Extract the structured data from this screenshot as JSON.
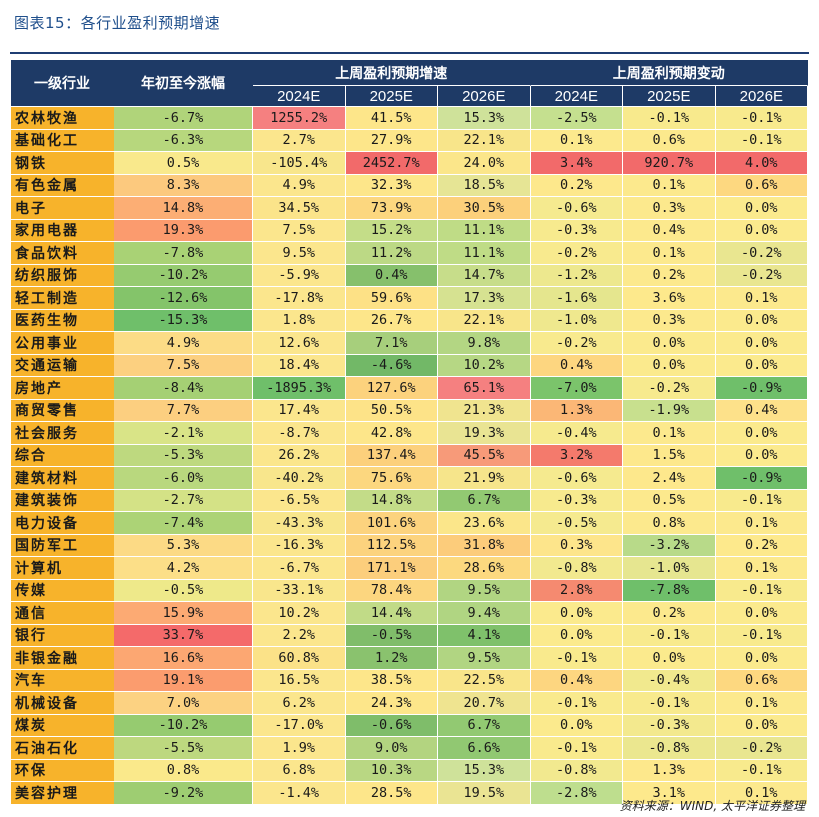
{
  "title": "图表15：各行业盈利预期增速",
  "headers": {
    "industry": "一级行业",
    "ytd": "年初至今涨幅",
    "group_growth": "上周盈利预期增速",
    "group_change": "上周盈利预期变动",
    "years": [
      "2024E",
      "2025E",
      "2026E"
    ]
  },
  "rows": [
    {
      "name": "农林牧渔",
      "cells": [
        {
          "v": "-6.7%",
          "c": "#b0d47a"
        },
        {
          "v": "1255.2%",
          "c": "#f58080"
        },
        {
          "v": "41.5%",
          "c": "#fde68a"
        },
        {
          "v": "15.3%",
          "c": "#cfe29a"
        },
        {
          "v": "-2.5%",
          "c": "#c5e08f"
        },
        {
          "v": "-0.1%",
          "c": "#f8ea8d"
        },
        {
          "v": "-0.1%",
          "c": "#f8ea8d"
        }
      ]
    },
    {
      "name": "基础化工",
      "cells": [
        {
          "v": "-6.3%",
          "c": "#b7d77d"
        },
        {
          "v": "2.7%",
          "c": "#fbe68d"
        },
        {
          "v": "27.9%",
          "c": "#fde68a"
        },
        {
          "v": "22.1%",
          "c": "#f8e58a"
        },
        {
          "v": "0.1%",
          "c": "#fce98d"
        },
        {
          "v": "0.6%",
          "c": "#fce98d"
        },
        {
          "v": "-0.1%",
          "c": "#f8ea8d"
        }
      ]
    },
    {
      "name": "钢铁",
      "cells": [
        {
          "v": "0.5%",
          "c": "#f9e98c"
        },
        {
          "v": "-105.4%",
          "c": "#f8e68c"
        },
        {
          "v": "2452.7%",
          "c": "#f26a6a"
        },
        {
          "v": "24.0%",
          "c": "#fbe68a"
        },
        {
          "v": "3.4%",
          "c": "#f26a6a"
        },
        {
          "v": "920.7%",
          "c": "#f26a6a"
        },
        {
          "v": "4.0%",
          "c": "#f26a6a"
        }
      ]
    },
    {
      "name": "有色金属",
      "cells": [
        {
          "v": "8.3%",
          "c": "#fcc97e"
        },
        {
          "v": "4.9%",
          "c": "#fbe68d"
        },
        {
          "v": "32.3%",
          "c": "#fde68a"
        },
        {
          "v": "18.5%",
          "c": "#e6e595"
        },
        {
          "v": "0.2%",
          "c": "#fde88c"
        },
        {
          "v": "0.1%",
          "c": "#fce98d"
        },
        {
          "v": "0.6%",
          "c": "#fdd880"
        }
      ]
    },
    {
      "name": "电子",
      "cells": [
        {
          "v": "14.8%",
          "c": "#fcae74"
        },
        {
          "v": "34.5%",
          "c": "#fbe48a"
        },
        {
          "v": "73.9%",
          "c": "#fcd77f"
        },
        {
          "v": "30.5%",
          "c": "#fcd07b"
        },
        {
          "v": "-0.6%",
          "c": "#f5ea8f"
        },
        {
          "v": "0.3%",
          "c": "#fce98d"
        },
        {
          "v": "0.0%",
          "c": "#fbea8d"
        }
      ]
    },
    {
      "name": "家用电器",
      "cells": [
        {
          "v": "19.3%",
          "c": "#fb9b6e"
        },
        {
          "v": "7.5%",
          "c": "#fbe68d"
        },
        {
          "v": "15.2%",
          "c": "#c4dd88"
        },
        {
          "v": "11.1%",
          "c": "#bfdc86"
        },
        {
          "v": "-0.3%",
          "c": "#f7ea8e"
        },
        {
          "v": "0.4%",
          "c": "#fce98d"
        },
        {
          "v": "0.0%",
          "c": "#fbea8d"
        }
      ]
    },
    {
      "name": "食品饮料",
      "cells": [
        {
          "v": "-7.8%",
          "c": "#a9d275"
        },
        {
          "v": "9.5%",
          "c": "#fbe68d"
        },
        {
          "v": "11.2%",
          "c": "#bcd985"
        },
        {
          "v": "11.1%",
          "c": "#bfdc86"
        },
        {
          "v": "-0.2%",
          "c": "#f8ea8e"
        },
        {
          "v": "0.1%",
          "c": "#fce98d"
        },
        {
          "v": "-0.2%",
          "c": "#e9e690"
        }
      ]
    },
    {
      "name": "纺织服饰",
      "cells": [
        {
          "v": "-10.2%",
          "c": "#96cb70"
        },
        {
          "v": "-5.9%",
          "c": "#fbe68d"
        },
        {
          "v": "0.4%",
          "c": "#86c06c"
        },
        {
          "v": "14.7%",
          "c": "#c7dd8a"
        },
        {
          "v": "-1.2%",
          "c": "#ede88e"
        },
        {
          "v": "0.2%",
          "c": "#fce98d"
        },
        {
          "v": "-0.2%",
          "c": "#e9e690"
        }
      ]
    },
    {
      "name": "轻工制造",
      "cells": [
        {
          "v": "-12.6%",
          "c": "#84c46a"
        },
        {
          "v": "-17.8%",
          "c": "#fbe68d"
        },
        {
          "v": "59.6%",
          "c": "#fde186"
        },
        {
          "v": "17.3%",
          "c": "#d6e291"
        },
        {
          "v": "-1.6%",
          "c": "#e5e68e"
        },
        {
          "v": "3.6%",
          "c": "#fde98c"
        },
        {
          "v": "0.1%",
          "c": "#fce98d"
        }
      ]
    },
    {
      "name": "医药生物",
      "cells": [
        {
          "v": "-15.3%",
          "c": "#6fbf6a"
        },
        {
          "v": "1.8%",
          "c": "#fbe68d"
        },
        {
          "v": "26.7%",
          "c": "#fde68a"
        },
        {
          "v": "22.1%",
          "c": "#f8e58a"
        },
        {
          "v": "-1.0%",
          "c": "#efe88e"
        },
        {
          "v": "0.3%",
          "c": "#fce98d"
        },
        {
          "v": "0.0%",
          "c": "#fbea8d"
        }
      ]
    },
    {
      "name": "公用事业",
      "cells": [
        {
          "v": "4.9%",
          "c": "#fcdc86"
        },
        {
          "v": "12.6%",
          "c": "#fbe68d"
        },
        {
          "v": "7.1%",
          "c": "#a7cf7c"
        },
        {
          "v": "9.8%",
          "c": "#b3d683"
        },
        {
          "v": "-0.2%",
          "c": "#f8ea8e"
        },
        {
          "v": "0.0%",
          "c": "#fbea8d"
        },
        {
          "v": "0.0%",
          "c": "#fbea8d"
        }
      ]
    },
    {
      "name": "交通运输",
      "cells": [
        {
          "v": "7.5%",
          "c": "#fcd080"
        },
        {
          "v": "18.4%",
          "c": "#fbe68d"
        },
        {
          "v": "-4.6%",
          "c": "#72b867"
        },
        {
          "v": "10.2%",
          "c": "#b6d784"
        },
        {
          "v": "0.4%",
          "c": "#fdd680"
        },
        {
          "v": "0.0%",
          "c": "#fbea8d"
        },
        {
          "v": "0.0%",
          "c": "#fbea8d"
        }
      ]
    },
    {
      "name": "房地产",
      "cells": [
        {
          "v": "-8.4%",
          "c": "#a5d074"
        },
        {
          "v": "-1895.3%",
          "c": "#6fbf6a"
        },
        {
          "v": "127.6%",
          "c": "#fcd27d"
        },
        {
          "v": "65.1%",
          "c": "#f58080"
        },
        {
          "v": "-7.0%",
          "c": "#7bc46b"
        },
        {
          "v": "-0.2%",
          "c": "#f7ea8e"
        },
        {
          "v": "-0.9%",
          "c": "#6fbf6a"
        }
      ]
    },
    {
      "name": "商贸零售",
      "cells": [
        {
          "v": "7.7%",
          "c": "#fccf80"
        },
        {
          "v": "17.4%",
          "c": "#fbe68d"
        },
        {
          "v": "50.5%",
          "c": "#fde388"
        },
        {
          "v": "21.3%",
          "c": "#f0e48f"
        },
        {
          "v": "1.3%",
          "c": "#fbb776"
        },
        {
          "v": "-1.9%",
          "c": "#c8e08e"
        },
        {
          "v": "0.4%",
          "c": "#fde18a"
        }
      ]
    },
    {
      "name": "社会服务",
      "cells": [
        {
          "v": "-2.1%",
          "c": "#d9e487"
        },
        {
          "v": "-8.7%",
          "c": "#fbe68d"
        },
        {
          "v": "42.8%",
          "c": "#fde68a"
        },
        {
          "v": "19.3%",
          "c": "#e9e493"
        },
        {
          "v": "-0.4%",
          "c": "#f6ea8e"
        },
        {
          "v": "0.1%",
          "c": "#fce98d"
        },
        {
          "v": "0.0%",
          "c": "#fbea8d"
        }
      ]
    },
    {
      "name": "综合",
      "cells": [
        {
          "v": "-5.3%",
          "c": "#bed97f"
        },
        {
          "v": "26.2%",
          "c": "#fbe68c"
        },
        {
          "v": "137.4%",
          "c": "#fcd07c"
        },
        {
          "v": "45.5%",
          "c": "#f79a79"
        },
        {
          "v": "3.2%",
          "c": "#f47a6c"
        },
        {
          "v": "1.5%",
          "c": "#fde88c"
        },
        {
          "v": "0.0%",
          "c": "#fbea8d"
        }
      ]
    },
    {
      "name": "建筑材料",
      "cells": [
        {
          "v": "-6.0%",
          "c": "#b9d87e"
        },
        {
          "v": "-40.2%",
          "c": "#f8e68c"
        },
        {
          "v": "75.6%",
          "c": "#fcd77f"
        },
        {
          "v": "21.9%",
          "c": "#f6e58b"
        },
        {
          "v": "-0.6%",
          "c": "#f5ea8f"
        },
        {
          "v": "2.4%",
          "c": "#fde88c"
        },
        {
          "v": "-0.9%",
          "c": "#6fbf6a"
        }
      ]
    },
    {
      "name": "建筑装饰",
      "cells": [
        {
          "v": "-2.7%",
          "c": "#d4e286"
        },
        {
          "v": "-6.5%",
          "c": "#fbe68d"
        },
        {
          "v": "14.8%",
          "c": "#c3dc88"
        },
        {
          "v": "6.7%",
          "c": "#92c972"
        },
        {
          "v": "-0.3%",
          "c": "#f7ea8e"
        },
        {
          "v": "0.5%",
          "c": "#fce98d"
        },
        {
          "v": "-0.1%",
          "c": "#f8ea8d"
        }
      ]
    },
    {
      "name": "电力设备",
      "cells": [
        {
          "v": "-7.4%",
          "c": "#acd376"
        },
        {
          "v": "-43.3%",
          "c": "#f8e68c"
        },
        {
          "v": "101.6%",
          "c": "#fcd37e"
        },
        {
          "v": "23.6%",
          "c": "#fbe68a"
        },
        {
          "v": "-0.5%",
          "c": "#f5ea8f"
        },
        {
          "v": "0.8%",
          "c": "#fce98d"
        },
        {
          "v": "0.1%",
          "c": "#fce98d"
        }
      ]
    },
    {
      "name": "国防军工",
      "cells": [
        {
          "v": "5.3%",
          "c": "#fcda85"
        },
        {
          "v": "-16.3%",
          "c": "#fbe68d"
        },
        {
          "v": "112.5%",
          "c": "#fcd37e"
        },
        {
          "v": "31.8%",
          "c": "#fccc7b"
        },
        {
          "v": "0.3%",
          "c": "#fde58b"
        },
        {
          "v": "-3.2%",
          "c": "#b8da89"
        },
        {
          "v": "0.2%",
          "c": "#fde98c"
        }
      ]
    },
    {
      "name": "计算机",
      "cells": [
        {
          "v": "4.2%",
          "c": "#fcdf88"
        },
        {
          "v": "-6.7%",
          "c": "#fbe68d"
        },
        {
          "v": "171.1%",
          "c": "#fcce7c"
        },
        {
          "v": "28.6%",
          "c": "#fcd97f"
        },
        {
          "v": "-0.8%",
          "c": "#f2e98f"
        },
        {
          "v": "-1.0%",
          "c": "#e6e690"
        },
        {
          "v": "0.1%",
          "c": "#fce98d"
        }
      ]
    },
    {
      "name": "传媒",
      "cells": [
        {
          "v": "-0.5%",
          "c": "#eee98a"
        },
        {
          "v": "-33.1%",
          "c": "#f9e68c"
        },
        {
          "v": "78.4%",
          "c": "#fcd67f"
        },
        {
          "v": "9.5%",
          "c": "#b1d582"
        },
        {
          "v": "2.8%",
          "c": "#f58a70"
        },
        {
          "v": "-7.8%",
          "c": "#6fbf6a"
        },
        {
          "v": "-0.1%",
          "c": "#f8ea8d"
        }
      ]
    },
    {
      "name": "通信",
      "cells": [
        {
          "v": "15.9%",
          "c": "#fcaa73"
        },
        {
          "v": "10.2%",
          "c": "#fbe68d"
        },
        {
          "v": "14.4%",
          "c": "#c1db87"
        },
        {
          "v": "9.4%",
          "c": "#b0d582"
        },
        {
          "v": "0.0%",
          "c": "#fbea8d"
        },
        {
          "v": "0.2%",
          "c": "#fce98d"
        },
        {
          "v": "0.0%",
          "c": "#fbea8d"
        }
      ]
    },
    {
      "name": "银行",
      "cells": [
        {
          "v": "33.7%",
          "c": "#f46a6a"
        },
        {
          "v": "2.2%",
          "c": "#fbe68d"
        },
        {
          "v": "-0.5%",
          "c": "#80bd6a"
        },
        {
          "v": "4.1%",
          "c": "#7fc16b"
        },
        {
          "v": "0.0%",
          "c": "#fbea8d"
        },
        {
          "v": "-0.1%",
          "c": "#f8ea8d"
        },
        {
          "v": "-0.1%",
          "c": "#f8ea8d"
        }
      ]
    },
    {
      "name": "非银金融",
      "cells": [
        {
          "v": "16.6%",
          "c": "#fca772"
        },
        {
          "v": "60.8%",
          "c": "#fbe288"
        },
        {
          "v": "1.2%",
          "c": "#8ac26e"
        },
        {
          "v": "9.5%",
          "c": "#b1d582"
        },
        {
          "v": "-0.1%",
          "c": "#f9ea8d"
        },
        {
          "v": "0.0%",
          "c": "#fbea8d"
        },
        {
          "v": "0.0%",
          "c": "#fbea8d"
        }
      ]
    },
    {
      "name": "汽车",
      "cells": [
        {
          "v": "19.1%",
          "c": "#fb9c6e"
        },
        {
          "v": "16.5%",
          "c": "#fbe68d"
        },
        {
          "v": "38.5%",
          "c": "#fde68a"
        },
        {
          "v": "22.5%",
          "c": "#f9e58a"
        },
        {
          "v": "0.4%",
          "c": "#fdd680"
        },
        {
          "v": "-0.4%",
          "c": "#f1e98e"
        },
        {
          "v": "0.6%",
          "c": "#fdd880"
        }
      ]
    },
    {
      "name": "机械设备",
      "cells": [
        {
          "v": "7.0%",
          "c": "#fcd282"
        },
        {
          "v": "6.2%",
          "c": "#fbe68d"
        },
        {
          "v": "24.3%",
          "c": "#fde68a"
        },
        {
          "v": "20.7%",
          "c": "#efe490"
        },
        {
          "v": "-0.1%",
          "c": "#f9ea8d"
        },
        {
          "v": "-0.1%",
          "c": "#f8ea8d"
        },
        {
          "v": "0.1%",
          "c": "#fce98d"
        }
      ]
    },
    {
      "name": "煤炭",
      "cells": [
        {
          "v": "-10.2%",
          "c": "#96cb70"
        },
        {
          "v": "-17.0%",
          "c": "#fbe68d"
        },
        {
          "v": "-0.6%",
          "c": "#7fbd6a"
        },
        {
          "v": "6.7%",
          "c": "#92c972"
        },
        {
          "v": "0.0%",
          "c": "#fbea8d"
        },
        {
          "v": "-0.3%",
          "c": "#f3e98e"
        },
        {
          "v": "0.0%",
          "c": "#fbea8d"
        }
      ]
    },
    {
      "name": "石油石化",
      "cells": [
        {
          "v": "-5.5%",
          "c": "#bdd87f"
        },
        {
          "v": "1.9%",
          "c": "#fbe68d"
        },
        {
          "v": "9.0%",
          "c": "#b3d480"
        },
        {
          "v": "6.6%",
          "c": "#91c872"
        },
        {
          "v": "-0.1%",
          "c": "#f9ea8d"
        },
        {
          "v": "-0.8%",
          "c": "#ebe78f"
        },
        {
          "v": "-0.2%",
          "c": "#e9e690"
        }
      ]
    },
    {
      "name": "环保",
      "cells": [
        {
          "v": "0.8%",
          "c": "#fae98b"
        },
        {
          "v": "6.8%",
          "c": "#fbe68d"
        },
        {
          "v": "10.3%",
          "c": "#b9d783"
        },
        {
          "v": "15.3%",
          "c": "#cfe29a"
        },
        {
          "v": "-0.8%",
          "c": "#f2e98f"
        },
        {
          "v": "1.3%",
          "c": "#fde88c"
        },
        {
          "v": "-0.1%",
          "c": "#f8ea8d"
        }
      ]
    },
    {
      "name": "美容护理",
      "cells": [
        {
          "v": "-9.2%",
          "c": "#9ecd72"
        },
        {
          "v": "-1.4%",
          "c": "#fbe68d"
        },
        {
          "v": "28.5%",
          "c": "#fde68a"
        },
        {
          "v": "19.5%",
          "c": "#eae493"
        },
        {
          "v": "-2.8%",
          "c": "#bede8e"
        },
        {
          "v": "3.1%",
          "c": "#fde98c"
        },
        {
          "v": "0.1%",
          "c": "#fce98d"
        }
      ]
    }
  ],
  "source": "资料来源：WIND, 太平洋证券整理"
}
